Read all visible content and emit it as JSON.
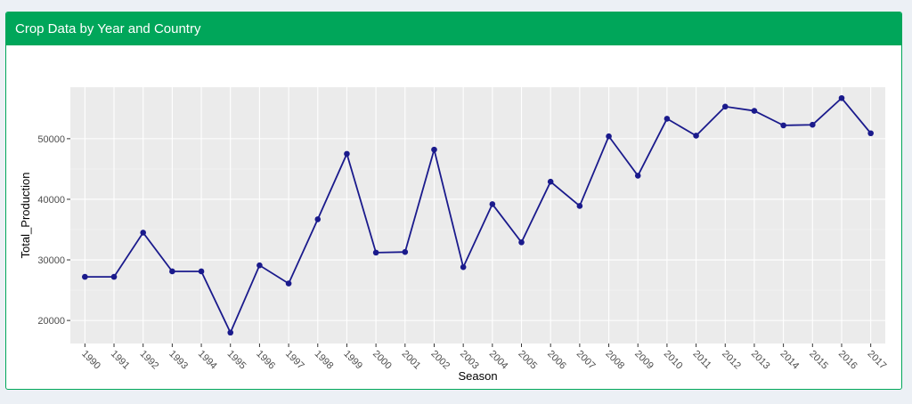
{
  "panel": {
    "title": "Crop Data by Year and Country",
    "header_color": "#00a65a"
  },
  "chart_data": {
    "type": "line",
    "title": "",
    "xlabel": "Season",
    "ylabel": "Total_Production",
    "categories": [
      "1990",
      "1991",
      "1992",
      "1993",
      "1994",
      "1995",
      "1996",
      "1997",
      "1998",
      "1999",
      "2000",
      "2001",
      "2002",
      "2003",
      "2004",
      "2005",
      "2006",
      "2007",
      "2008",
      "2009",
      "2010",
      "2011",
      "2012",
      "2013",
      "2014",
      "2015",
      "2016",
      "2017"
    ],
    "series": [
      {
        "values": [
          27200,
          27200,
          34500,
          28100,
          28100,
          18000,
          29100,
          26100,
          36700,
          47500,
          31200,
          31300,
          48200,
          28800,
          39200,
          32900,
          42900,
          38900,
          50400,
          43900,
          53300,
          50500,
          55300,
          54600,
          52200,
          52300,
          56700,
          50900
        ],
        "color": "#1a1a8c"
      }
    ],
    "yticks": [
      20000,
      30000,
      40000,
      50000
    ],
    "ytick_labels": [
      "20000",
      "30000",
      "40000",
      "50000"
    ],
    "ylim": [
      16200,
      58500
    ],
    "grid": true,
    "panel_background": "#ebebeb"
  }
}
